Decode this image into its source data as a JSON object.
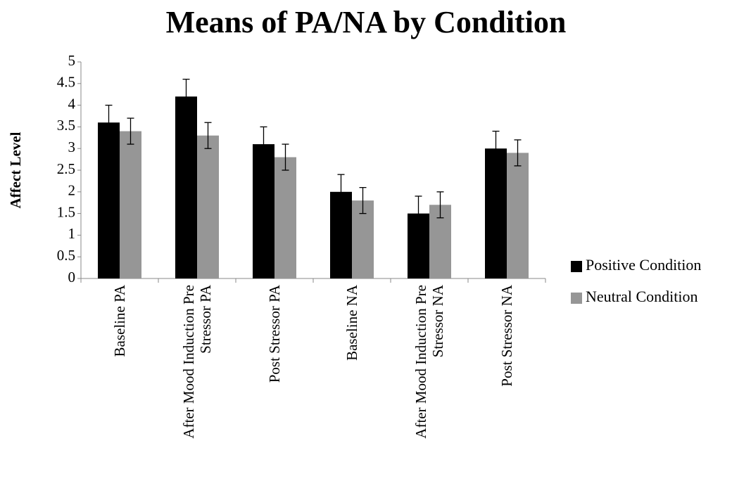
{
  "chart_data": {
    "type": "bar",
    "title": "Means of PA/NA by Condition",
    "y_label": "Affect Level",
    "categories": [
      "Baseline PA",
      "After Mood Induction Pre Stressor PA",
      "Post Stressor PA",
      "Baseline NA",
      "After Mood Induction Pre Stressor NA",
      "Post Stressor NA"
    ],
    "series": [
      {
        "name": "Positive Condition",
        "color": "#000000",
        "values": [
          3.6,
          4.2,
          3.1,
          2.0,
          1.5,
          3.0
        ],
        "errors": [
          0.4,
          0.4,
          0.4,
          0.4,
          0.4,
          0.4
        ]
      },
      {
        "name": "Neutral Condition",
        "color": "#969696",
        "values": [
          3.4,
          3.3,
          2.8,
          1.8,
          1.7,
          2.9
        ],
        "errors": [
          0.3,
          0.3,
          0.3,
          0.3,
          0.3,
          0.3
        ]
      }
    ],
    "ylim": [
      0,
      5
    ],
    "yticks": [
      0,
      0.5,
      1,
      1.5,
      2,
      2.5,
      3,
      3.5,
      4,
      4.5,
      5
    ],
    "grid": false,
    "legend": "right"
  }
}
